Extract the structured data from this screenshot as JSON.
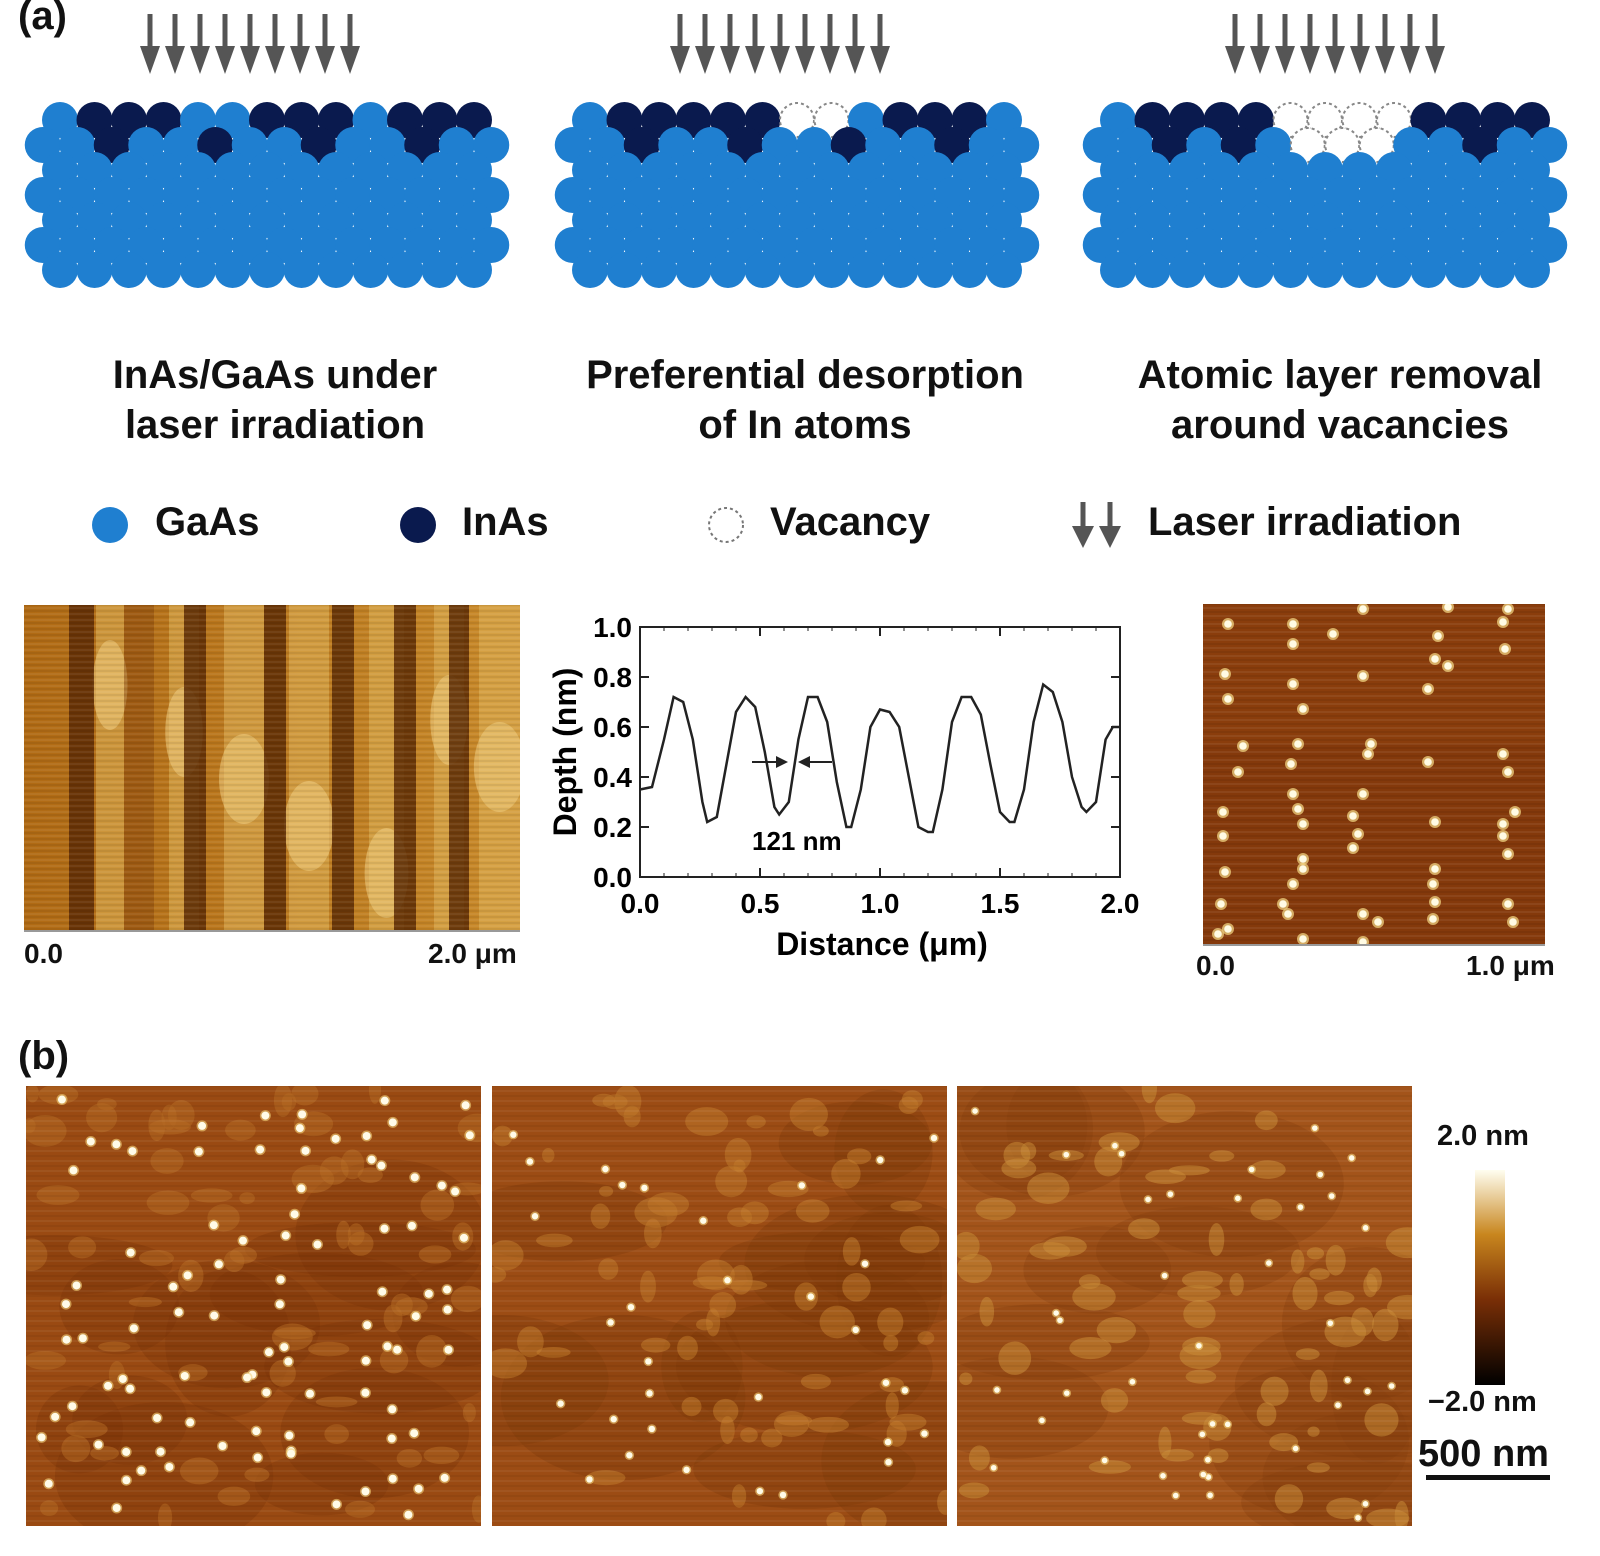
{
  "panel_a": {
    "label": "(a)",
    "captions": [
      {
        "line1": "InAs/GaAs under",
        "line2": "laser irradiation"
      },
      {
        "line1": "Preferential desorption",
        "line2": "of In atoms"
      },
      {
        "line1": "Atomic layer removal",
        "line2": "around vacancies"
      }
    ],
    "legend": [
      {
        "label": "GaAs",
        "icon": "gaas-atom-icon"
      },
      {
        "label": "InAs",
        "icon": "inas-atom-icon"
      },
      {
        "label": "Vacancy",
        "icon": "vacancy-icon"
      },
      {
        "label": "Laser irradiation",
        "icon": "laser-arrows-icon"
      }
    ],
    "afm_left": {
      "x_start": "0.0",
      "x_end": "2.0 μm"
    },
    "afm_right": {
      "x_start": "0.0",
      "x_end": "1.0 μm"
    },
    "colors": {
      "gaas": "#1f7fd0",
      "inas": "#0a1a4e",
      "arrow": "#555555"
    }
  },
  "chart_data": {
    "type": "line",
    "xlabel": "Distance (μm)",
    "ylabel": "Depth (nm)",
    "xlim": [
      0.0,
      2.0
    ],
    "ylim": [
      0.0,
      1.0
    ],
    "xticks": [
      "0.0",
      "0.5",
      "1.0",
      "1.5",
      "2.0"
    ],
    "yticks": [
      "0.0",
      "0.2",
      "0.4",
      "0.6",
      "0.8",
      "1.0"
    ],
    "annotation": "121 nm",
    "series": [
      {
        "x": [
          0.0,
          0.05,
          0.1,
          0.14,
          0.18,
          0.22,
          0.26,
          0.28,
          0.32,
          0.36,
          0.4,
          0.44,
          0.48,
          0.52,
          0.56,
          0.58,
          0.62,
          0.66,
          0.7,
          0.74,
          0.78,
          0.82,
          0.86,
          0.88,
          0.92,
          0.96,
          1.0,
          1.04,
          1.08,
          1.12,
          1.16,
          1.2,
          1.22,
          1.26,
          1.3,
          1.34,
          1.38,
          1.42,
          1.46,
          1.5,
          1.54,
          1.56,
          1.6,
          1.64,
          1.68,
          1.72,
          1.76,
          1.8,
          1.84,
          1.86,
          1.9,
          1.94,
          1.97,
          2.0
        ],
        "y": [
          0.35,
          0.36,
          0.55,
          0.72,
          0.7,
          0.55,
          0.3,
          0.22,
          0.24,
          0.45,
          0.66,
          0.72,
          0.68,
          0.5,
          0.28,
          0.25,
          0.3,
          0.55,
          0.72,
          0.72,
          0.62,
          0.38,
          0.2,
          0.2,
          0.35,
          0.6,
          0.67,
          0.66,
          0.6,
          0.4,
          0.2,
          0.18,
          0.18,
          0.35,
          0.62,
          0.72,
          0.72,
          0.65,
          0.45,
          0.26,
          0.22,
          0.22,
          0.35,
          0.62,
          0.77,
          0.74,
          0.62,
          0.4,
          0.28,
          0.26,
          0.3,
          0.55,
          0.6,
          0.6
        ]
      }
    ]
  },
  "panel_b": {
    "label": "(b)",
    "colorbar_max": "2.0 nm",
    "colorbar_min": "−2.0 nm",
    "scale_bar": "500 nm"
  }
}
